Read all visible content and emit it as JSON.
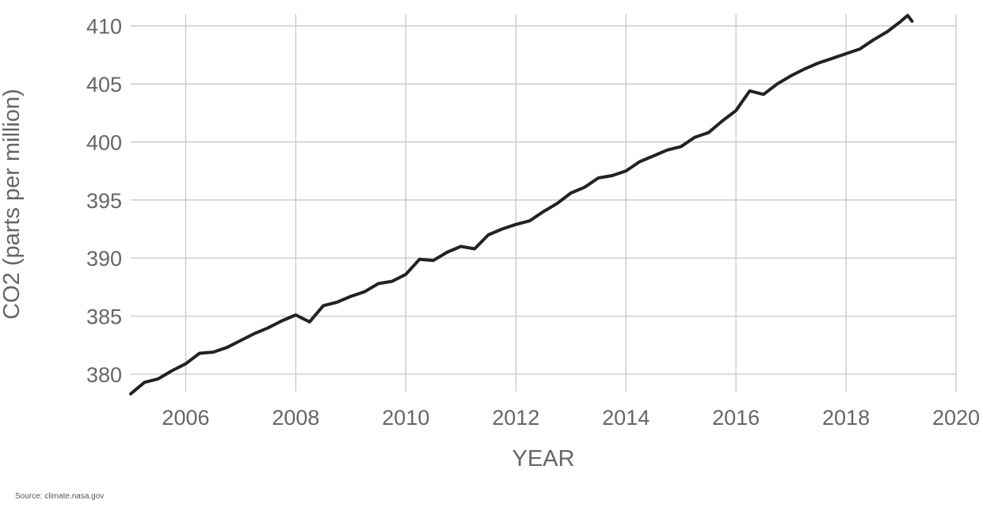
{
  "chart_data": {
    "type": "line",
    "title": "",
    "xlabel": "YEAR",
    "ylabel": "CO2 (parts per million)",
    "xlim": [
      2005.0,
      2020.0
    ],
    "ylim": [
      378.5,
      411
    ],
    "x_ticks": [
      2006,
      2008,
      2010,
      2012,
      2014,
      2016,
      2018,
      2020
    ],
    "y_ticks": [
      380,
      385,
      390,
      395,
      400,
      405,
      410
    ],
    "grid": true,
    "line_color": "#222222",
    "series": [
      {
        "x": [
          2005.0,
          2005.25,
          2005.5,
          2005.75,
          2006.0,
          2006.25,
          2006.5,
          2006.75,
          2007.0,
          2007.25,
          2007.5,
          2007.75,
          2008.0,
          2008.25,
          2008.5,
          2008.75,
          2009.0,
          2009.25,
          2009.5,
          2009.75,
          2010.0,
          2010.25,
          2010.5,
          2010.75,
          2011.0,
          2011.25,
          2011.5,
          2011.75,
          2012.0,
          2012.25,
          2012.5,
          2012.75,
          2013.0,
          2013.25,
          2013.5,
          2013.75,
          2014.0,
          2014.25,
          2014.5,
          2014.75,
          2015.0,
          2015.25,
          2015.5,
          2015.75,
          2016.0,
          2016.25,
          2016.5,
          2016.75,
          2017.0,
          2017.25,
          2017.5,
          2017.75,
          2018.0,
          2018.25,
          2018.5,
          2018.75,
          2019.0,
          2019.12,
          2019.2
        ],
        "values": [
          378.3,
          379.3,
          379.6,
          380.3,
          380.9,
          381.8,
          381.9,
          382.3,
          382.9,
          383.5,
          384.0,
          384.6,
          385.1,
          384.5,
          385.9,
          386.2,
          386.7,
          387.1,
          387.8,
          388.0,
          388.6,
          389.9,
          389.8,
          390.5,
          391.0,
          390.8,
          392.0,
          392.5,
          392.9,
          393.2,
          394.0,
          394.7,
          395.6,
          396.1,
          396.9,
          397.1,
          397.5,
          398.3,
          398.8,
          399.3,
          399.6,
          400.4,
          400.8,
          401.8,
          402.7,
          404.4,
          404.1,
          405.0,
          405.7,
          406.3,
          406.8,
          407.2,
          407.6,
          408.0,
          408.8,
          409.5,
          410.4,
          410.9,
          410.4
        ]
      }
    ]
  },
  "source_text": "Source: climate.nasa.gov"
}
